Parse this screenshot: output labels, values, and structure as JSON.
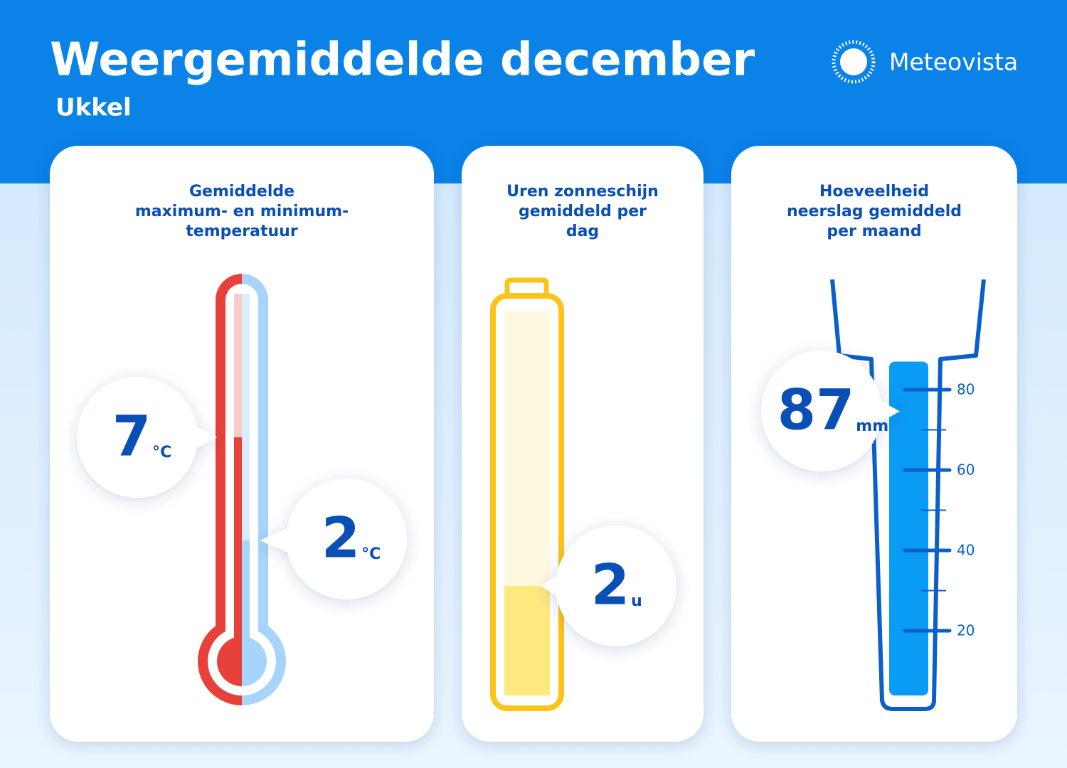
{
  "header": {
    "title": "Weergemiddelde december",
    "subtitle": "Ukkel",
    "brand": "Meteovista"
  },
  "panels": [
    {
      "title": [
        "Gemiddelde",
        "maximum- en minimum-",
        "temperatuur"
      ],
      "max": {
        "value": 7,
        "unit": "°C"
      },
      "min": {
        "value": 2,
        "unit": "°C"
      }
    },
    {
      "title": [
        "Uren zonneschijn",
        "gemiddeld per",
        "dag"
      ],
      "value": 2,
      "unit": "u"
    },
    {
      "title": [
        "Hoeveelheid",
        "neerslag gemiddeld",
        "per maand"
      ],
      "value": 87,
      "unit": "mm",
      "ticks": [
        20,
        40,
        60,
        80
      ]
    }
  ]
}
